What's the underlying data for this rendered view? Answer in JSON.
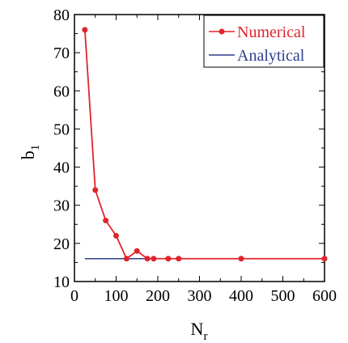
{
  "colors": {
    "numerical": "#e0242b",
    "analytical": "#2f3f8f",
    "axis": "#000000",
    "background": "#ffffff"
  },
  "chart_data": {
    "type": "line",
    "xlabel": "N",
    "xlabel_sub": "r",
    "ylabel": "b",
    "ylabel_sub": "1",
    "xlim": [
      0,
      600
    ],
    "ylim": [
      10,
      80
    ],
    "xticks": [
      0,
      100,
      200,
      300,
      400,
      500,
      600
    ],
    "yticks": [
      10,
      20,
      30,
      40,
      50,
      60,
      70,
      80
    ],
    "xtick_labels": [
      "0",
      "100",
      "200",
      "300",
      "400",
      "500",
      "600"
    ],
    "ytick_labels": [
      "10",
      "20",
      "30",
      "40",
      "50",
      "60",
      "70",
      "80"
    ],
    "legend_position": "top-right",
    "grid": false,
    "series": [
      {
        "name": "Numerical",
        "marker": "circle",
        "x": [
          25,
          50,
          75,
          100,
          125,
          150,
          175,
          190,
          225,
          250,
          400,
          600
        ],
        "y": [
          76,
          34,
          26,
          22,
          16,
          18,
          16,
          16,
          16,
          16,
          16,
          16
        ]
      },
      {
        "name": "Analytical",
        "marker": "none",
        "x": [
          25,
          600
        ],
        "y": [
          16,
          16
        ]
      }
    ]
  }
}
